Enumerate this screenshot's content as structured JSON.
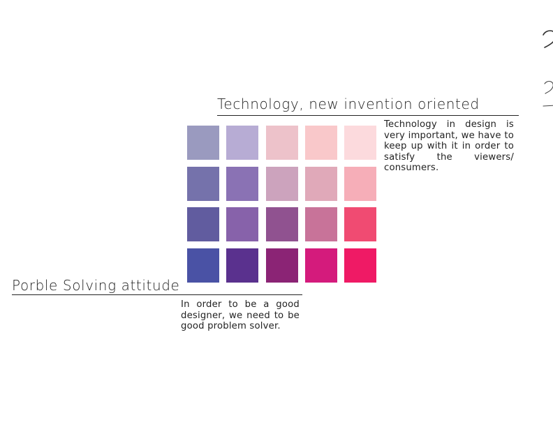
{
  "technology": {
    "heading": "Technology, new invention oriented",
    "body": "Technology in design is very important, we have to keep up with it in order to satisfy the viewers/ consumers."
  },
  "problem_solving": {
    "heading": "Porble Solving attitude",
    "body": "In order to be a good designer, we need to be good problem solver."
  },
  "palette": {
    "rows": [
      [
        "#9a9abf",
        "#b7acd4",
        "#edc2ca",
        "#f9c8ca",
        "#fcdadd"
      ],
      [
        "#7572ab",
        "#8a72b4",
        "#cca3bd",
        "#e0a9b9",
        "#f6aeb8"
      ],
      [
        "#615c9f",
        "#8762aa",
        "#905290",
        "#c87399",
        "#f04b72"
      ],
      [
        "#4a52a5",
        "#5a318e",
        "#8b2475",
        "#d41b7c",
        "#ef1a65"
      ]
    ]
  }
}
